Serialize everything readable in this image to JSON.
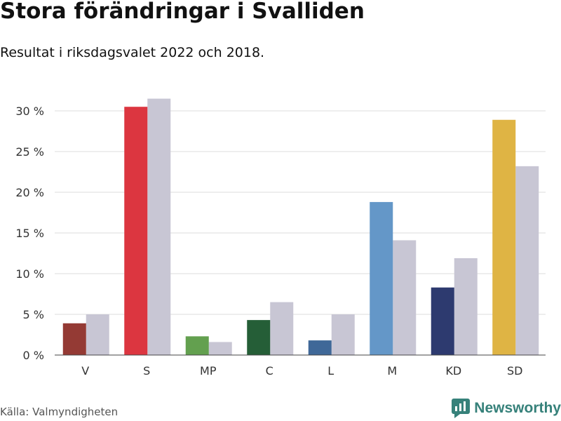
{
  "header": {
    "title": "Stora förändringar i Svalliden",
    "subtitle": "Resultat i riksdagsvalet 2022 och 2018."
  },
  "footer": {
    "source": "Källa: Valmyndigheten",
    "brand": "Newsworthy",
    "brand_color": "#36817a"
  },
  "chart_data": {
    "type": "bar",
    "categories": [
      "V",
      "S",
      "MP",
      "C",
      "L",
      "M",
      "KD",
      "SD"
    ],
    "series": [
      {
        "values": [
          3.9,
          30.5,
          2.3,
          4.3,
          1.8,
          18.8,
          8.3,
          28.9
        ],
        "colors": [
          "#943a34",
          "#dc3640",
          "#63a04f",
          "#255e37",
          "#3f6898",
          "#6497c8",
          "#2d3a6f",
          "#dfb444"
        ]
      },
      {
        "values": [
          5.0,
          31.5,
          1.6,
          6.5,
          5.0,
          14.1,
          11.9,
          23.2
        ],
        "color": "#c8c6d4"
      }
    ],
    "y_ticks": [
      0,
      5,
      10,
      15,
      20,
      25,
      30
    ],
    "y_tick_labels": [
      "0 %",
      "5 %",
      "10 %",
      "15 %",
      "20 %",
      "25 %",
      "30 %"
    ],
    "ylim": [
      0,
      32
    ],
    "grid": true
  }
}
